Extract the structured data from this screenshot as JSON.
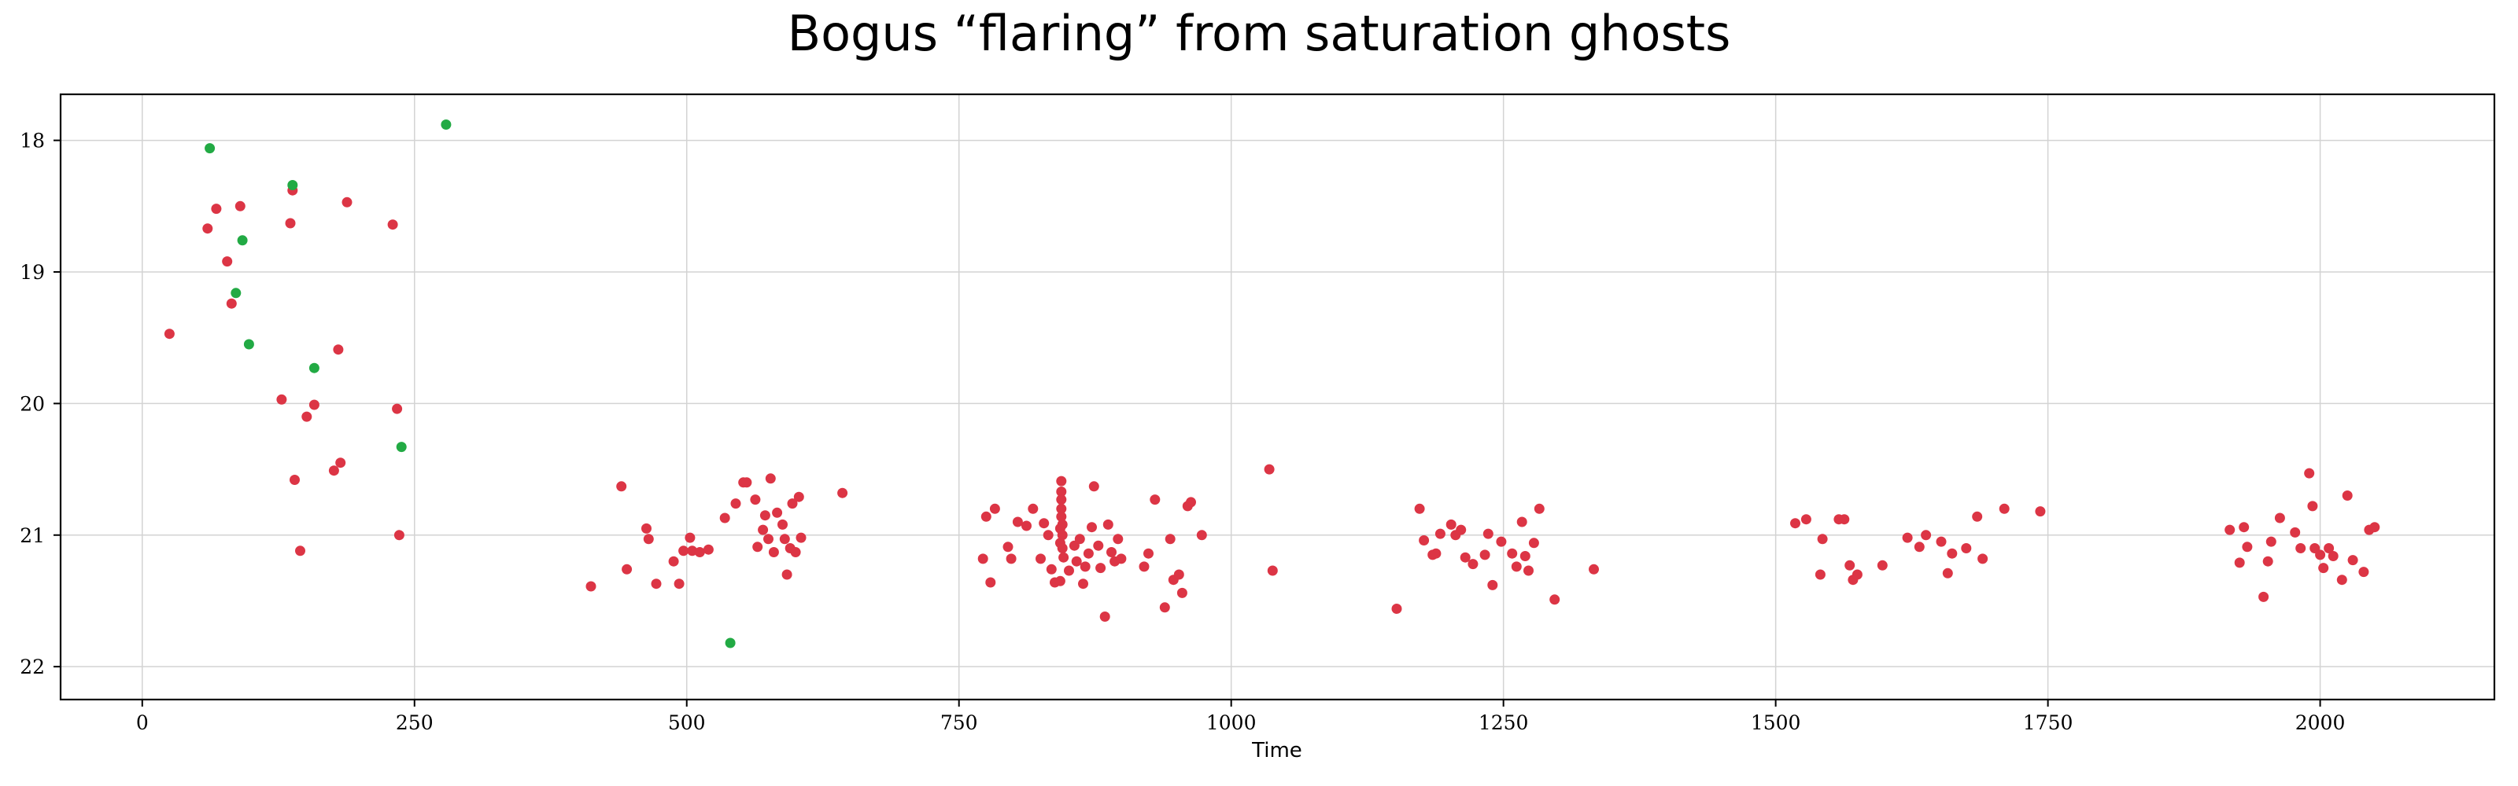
{
  "colors": {
    "red_points": "#dc3545",
    "green_points": "#22aa44"
  },
  "chart_data": {
    "type": "scatter",
    "title": "Bogus “flaring” from saturation ghosts",
    "xlabel": "Time",
    "ylabel": "",
    "xlim": [
      -75,
      2160
    ],
    "ylim": [
      22.25,
      17.65
    ],
    "y_inverted": true,
    "grid": true,
    "x_ticks": [
      0,
      250,
      500,
      750,
      1000,
      1250,
      1500,
      1750,
      2000
    ],
    "y_ticks": [
      18,
      19,
      20,
      21,
      22
    ],
    "series": [
      {
        "color": "#dc3545",
        "points": [
          [
            25,
            19.47
          ],
          [
            60,
            18.67
          ],
          [
            68,
            18.52
          ],
          [
            78,
            18.92
          ],
          [
            82,
            19.24
          ],
          [
            90,
            18.5
          ],
          [
            128,
            19.97
          ],
          [
            136,
            18.63
          ],
          [
            138,
            18.38
          ],
          [
            140,
            20.58
          ],
          [
            145,
            21.12
          ],
          [
            151,
            20.1
          ],
          [
            158,
            20.01
          ],
          [
            176,
            20.51
          ],
          [
            180,
            19.59
          ],
          [
            182,
            20.45
          ],
          [
            188,
            18.47
          ],
          [
            230,
            18.64
          ],
          [
            234,
            20.04
          ],
          [
            236,
            21.0
          ],
          [
            412,
            21.39
          ],
          [
            440,
            20.63
          ],
          [
            445,
            21.26
          ],
          [
            463,
            20.95
          ],
          [
            465,
            21.03
          ],
          [
            472,
            21.37
          ],
          [
            488,
            21.2
          ],
          [
            493,
            21.37
          ],
          [
            497,
            21.12
          ],
          [
            503,
            21.02
          ],
          [
            505,
            21.12
          ],
          [
            512,
            21.13
          ],
          [
            520,
            21.11
          ],
          [
            535,
            20.87
          ],
          [
            545,
            20.76
          ],
          [
            552,
            20.6
          ],
          [
            555,
            20.6
          ],
          [
            563,
            20.73
          ],
          [
            565,
            21.09
          ],
          [
            570,
            20.96
          ],
          [
            572,
            20.85
          ],
          [
            575,
            21.03
          ],
          [
            577,
            20.57
          ],
          [
            580,
            21.13
          ],
          [
            583,
            20.83
          ],
          [
            588,
            20.92
          ],
          [
            590,
            21.03
          ],
          [
            592,
            21.3
          ],
          [
            595,
            21.1
          ],
          [
            597,
            20.76
          ],
          [
            600,
            21.13
          ],
          [
            603,
            20.71
          ],
          [
            605,
            21.02
          ],
          [
            643,
            20.68
          ],
          [
            772,
            21.18
          ],
          [
            775,
            20.86
          ],
          [
            779,
            21.36
          ],
          [
            783,
            20.8
          ],
          [
            795,
            21.09
          ],
          [
            798,
            21.18
          ],
          [
            804,
            20.9
          ],
          [
            812,
            20.93
          ],
          [
            818,
            20.8
          ],
          [
            825,
            21.18
          ],
          [
            828,
            20.91
          ],
          [
            832,
            21.0
          ],
          [
            835,
            21.26
          ],
          [
            838,
            21.36
          ],
          [
            843,
            20.95
          ],
          [
            843,
            21.06
          ],
          [
            843,
            21.35
          ],
          [
            844,
            20.59
          ],
          [
            844,
            20.67
          ],
          [
            844,
            20.73
          ],
          [
            844,
            20.8
          ],
          [
            844,
            20.86
          ],
          [
            845,
            20.92
          ],
          [
            845,
            21.0
          ],
          [
            845,
            21.1
          ],
          [
            846,
            21.17
          ],
          [
            851,
            21.27
          ],
          [
            856,
            21.08
          ],
          [
            858,
            21.2
          ],
          [
            861,
            21.03
          ],
          [
            864,
            21.37
          ],
          [
            866,
            21.24
          ],
          [
            869,
            21.14
          ],
          [
            872,
            20.94
          ],
          [
            874,
            20.63
          ],
          [
            878,
            21.08
          ],
          [
            880,
            21.25
          ],
          [
            884,
            21.62
          ],
          [
            887,
            20.92
          ],
          [
            890,
            21.13
          ],
          [
            893,
            21.2
          ],
          [
            896,
            21.03
          ],
          [
            899,
            21.18
          ],
          [
            920,
            21.24
          ],
          [
            924,
            21.14
          ],
          [
            930,
            20.73
          ],
          [
            939,
            21.55
          ],
          [
            944,
            21.03
          ],
          [
            947,
            21.34
          ],
          [
            952,
            21.3
          ],
          [
            955,
            21.44
          ],
          [
            960,
            20.78
          ],
          [
            963,
            20.75
          ],
          [
            973,
            21.0
          ],
          [
            1035,
            20.5
          ],
          [
            1038,
            21.27
          ],
          [
            1152,
            21.56
          ],
          [
            1173,
            20.8
          ],
          [
            1177,
            21.04
          ],
          [
            1185,
            21.15
          ],
          [
            1188,
            21.14
          ],
          [
            1192,
            20.99
          ],
          [
            1202,
            20.92
          ],
          [
            1206,
            21.0
          ],
          [
            1211,
            20.96
          ],
          [
            1215,
            21.17
          ],
          [
            1222,
            21.22
          ],
          [
            1233,
            21.15
          ],
          [
            1236,
            20.99
          ],
          [
            1240,
            21.38
          ],
          [
            1248,
            21.05
          ],
          [
            1258,
            21.14
          ],
          [
            1262,
            21.24
          ],
          [
            1267,
            20.9
          ],
          [
            1270,
            21.16
          ],
          [
            1273,
            21.27
          ],
          [
            1278,
            21.06
          ],
          [
            1283,
            20.8
          ],
          [
            1297,
            21.49
          ],
          [
            1333,
            21.26
          ],
          [
            1518,
            20.91
          ],
          [
            1528,
            20.88
          ],
          [
            1541,
            21.3
          ],
          [
            1543,
            21.03
          ],
          [
            1558,
            20.88
          ],
          [
            1563,
            20.88
          ],
          [
            1568,
            21.23
          ],
          [
            1571,
            21.34
          ],
          [
            1575,
            21.3
          ],
          [
            1598,
            21.23
          ],
          [
            1621,
            21.02
          ],
          [
            1632,
            21.09
          ],
          [
            1638,
            21.0
          ],
          [
            1652,
            21.05
          ],
          [
            1658,
            21.29
          ],
          [
            1662,
            21.14
          ],
          [
            1675,
            21.1
          ],
          [
            1685,
            20.86
          ],
          [
            1690,
            21.18
          ],
          [
            1710,
            20.8
          ],
          [
            1743,
            20.82
          ],
          [
            1917,
            20.96
          ],
          [
            1926,
            21.21
          ],
          [
            1930,
            20.94
          ],
          [
            1933,
            21.09
          ],
          [
            1948,
            21.47
          ],
          [
            1952,
            21.2
          ],
          [
            1955,
            21.05
          ],
          [
            1963,
            20.87
          ],
          [
            1977,
            20.98
          ],
          [
            1982,
            21.1
          ],
          [
            1990,
            20.53
          ],
          [
            1993,
            20.78
          ],
          [
            1995,
            21.1
          ],
          [
            2000,
            21.15
          ],
          [
            2003,
            21.25
          ],
          [
            2008,
            21.1
          ],
          [
            2012,
            21.16
          ],
          [
            2020,
            21.34
          ],
          [
            2025,
            20.7
          ],
          [
            2030,
            21.19
          ],
          [
            2040,
            21.28
          ],
          [
            2045,
            20.96
          ],
          [
            2050,
            20.94
          ]
        ]
      },
      {
        "color": "#22aa44",
        "points": [
          [
            62,
            18.06
          ],
          [
            86,
            19.16
          ],
          [
            92,
            18.76
          ],
          [
            98,
            19.55
          ],
          [
            138,
            18.34
          ],
          [
            158,
            19.73
          ],
          [
            238,
            20.33
          ],
          [
            279,
            17.88
          ],
          [
            540,
            21.82
          ]
        ]
      }
    ]
  }
}
